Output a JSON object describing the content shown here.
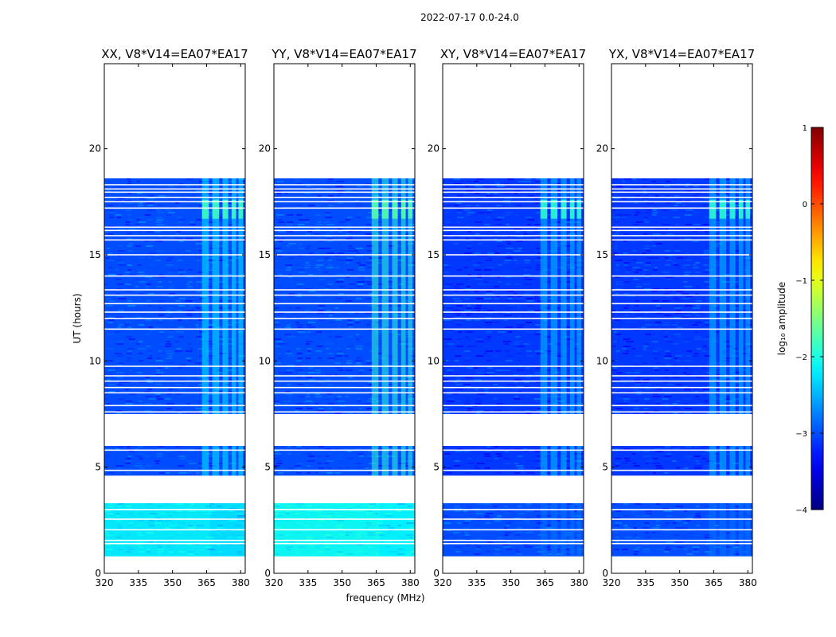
{
  "chart_data": {
    "type": "heatmap",
    "suptitle": "2022-07-17 0.0-24.0",
    "xlabel": "frequency (MHz)",
    "ylabel": "UT (hours)",
    "xlim": [
      320,
      382
    ],
    "ylim": [
      0,
      24
    ],
    "xticks": [
      320,
      335,
      350,
      365,
      380
    ],
    "xtick_labels": [
      "320",
      "335",
      "350",
      "365",
      "380"
    ],
    "yticks": [
      0,
      5,
      10,
      15,
      20
    ],
    "ytick_labels": [
      "0",
      "5",
      "10",
      "15",
      "20"
    ],
    "colorbar": {
      "label": "log₁₀ amplitude",
      "range": [
        -4,
        1
      ],
      "ticks": [
        -4,
        -3,
        -2,
        -1,
        0,
        1
      ],
      "tick_labels": [
        "−4",
        "−3",
        "−2",
        "−1",
        "0",
        "1"
      ],
      "colormap": "jet"
    },
    "data_segments_hours": [
      [
        0.8,
        3.3
      ],
      [
        4.6,
        6.0
      ],
      [
        7.5,
        18.6
      ]
    ],
    "gap_lines_hours": [
      1.4,
      1.55,
      2.05,
      2.55,
      3.0,
      4.05,
      4.12,
      4.85,
      5.8,
      7.6,
      7.9,
      8.5,
      8.75,
      9.05,
      9.3,
      9.75,
      11.5,
      12.0,
      12.3,
      12.7,
      13.1,
      13.35,
      14.0,
      15.0,
      15.7,
      15.9,
      16.15,
      16.3,
      17.2,
      17.5,
      17.7,
      17.95,
      18.1,
      18.3
    ],
    "rfi_bands_mhz": [
      [
        363,
        366
      ],
      [
        367.5,
        370.5
      ],
      [
        372,
        374.5
      ],
      [
        376,
        378
      ],
      [
        379,
        381
      ]
    ],
    "panels": [
      {
        "title": "XX, V8*V14=EA07*EA17",
        "base_level": -3.0,
        "band_level": -2.2,
        "low_segment_level": -2.3,
        "burst_level": -1.8
      },
      {
        "title": "YY, V8*V14=EA07*EA17",
        "base_level": -3.0,
        "band_level": -1.9,
        "low_segment_level": -2.2,
        "burst_level": -1.7
      },
      {
        "title": "XY, V8*V14=EA07*EA17",
        "base_level": -3.1,
        "band_level": -2.4,
        "low_segment_level": -3.0,
        "burst_level": -1.9
      },
      {
        "title": "YX, V8*V14=EA07*EA17",
        "base_level": -3.1,
        "band_level": -2.4,
        "low_segment_level": -3.0,
        "burst_level": -1.9
      }
    ]
  }
}
